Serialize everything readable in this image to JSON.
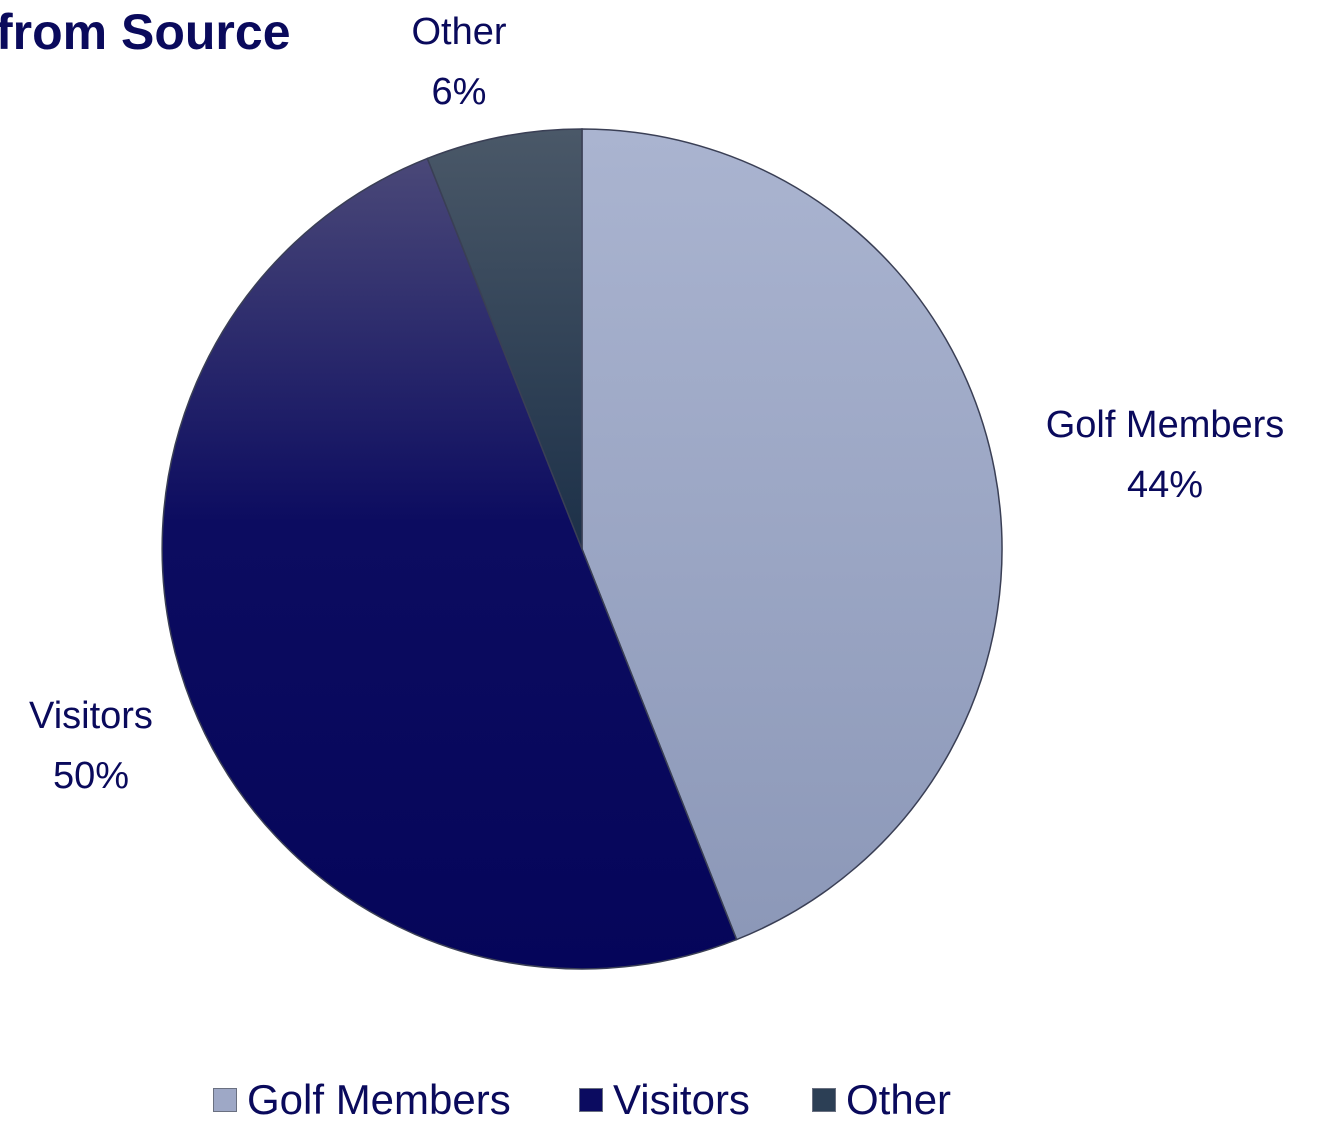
{
  "chart_data": {
    "type": "pie",
    "title": "from Source",
    "categories": [
      "Golf Members",
      "Visitors",
      "Other"
    ],
    "values": [
      44,
      50,
      6
    ],
    "value_labels": [
      "44%",
      "50%",
      "6%"
    ],
    "colors": [
      "#9ea8c6",
      "#0b0b60",
      "#2c3f55"
    ],
    "legend": {
      "position": "bottom",
      "entries": [
        "Golf Members",
        "Visitors",
        "Other"
      ]
    }
  }
}
